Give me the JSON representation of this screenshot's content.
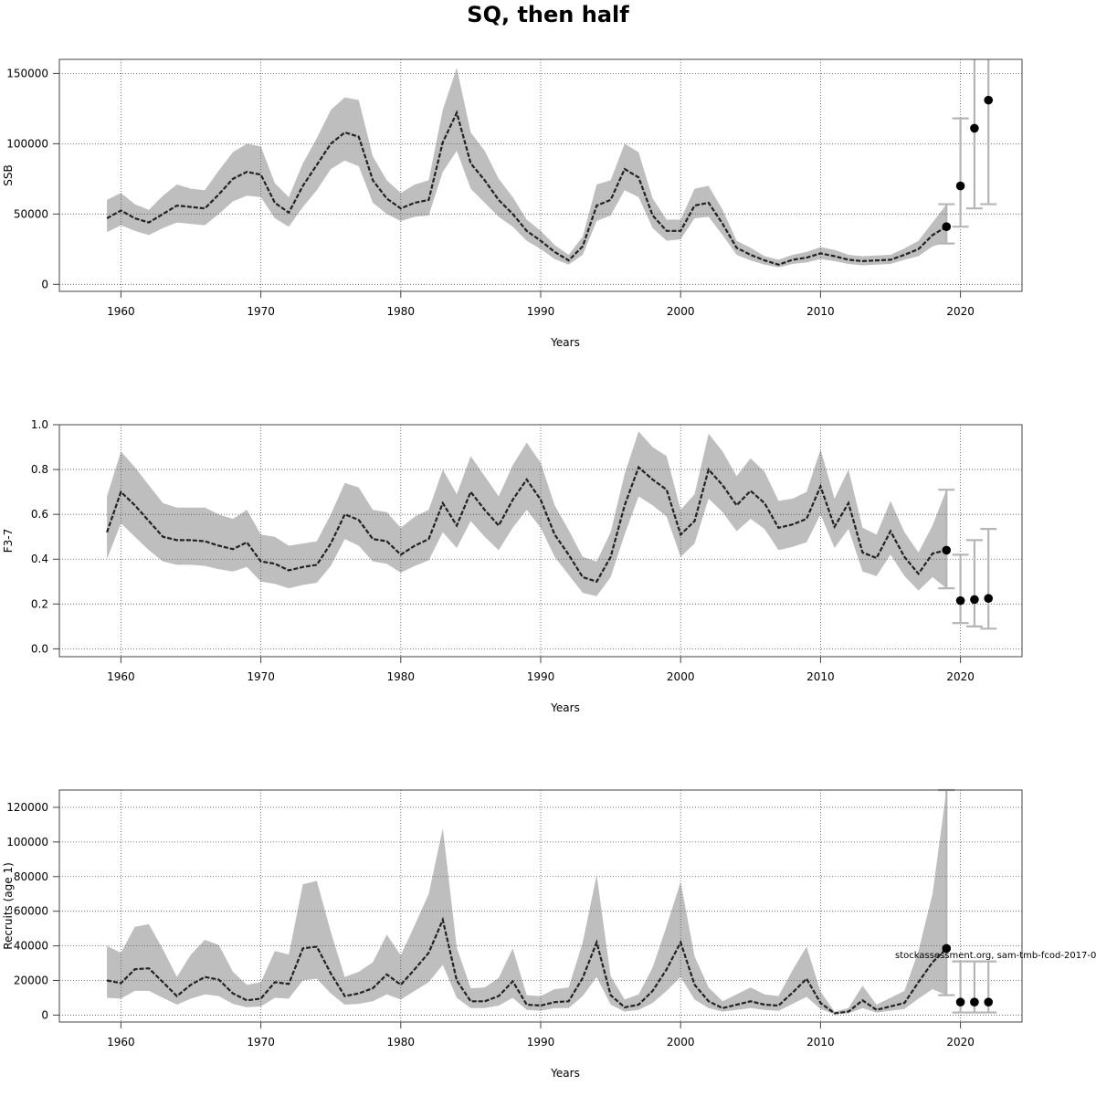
{
  "title": "SQ, then half",
  "credit": "stockassessment.org, sam-tmb-fcod-2017-0",
  "chart_data": [
    {
      "type": "line",
      "ylabel": "SSB",
      "xlabel": "Years",
      "xlim": [
        1955.6,
        2024.4
      ],
      "ylim": [
        -5000,
        160000
      ],
      "xticks": [
        1960,
        1970,
        1980,
        1990,
        2000,
        2010,
        2020
      ],
      "yticks": [
        0,
        50000,
        100000,
        150000
      ],
      "ytick_labels": [
        "0",
        "50000",
        "100000",
        "150000"
      ],
      "grid": true,
      "band_color": "#bebebe",
      "x": [
        1959,
        1960,
        1961,
        1962,
        1963,
        1964,
        1965,
        1966,
        1967,
        1968,
        1969,
        1970,
        1971,
        1972,
        1973,
        1974,
        1975,
        1976,
        1977,
        1978,
        1979,
        1980,
        1981,
        1982,
        1983,
        1984,
        1985,
        1986,
        1987,
        1988,
        1989,
        1990,
        1991,
        1992,
        1993,
        1994,
        1995,
        1996,
        1997,
        1998,
        1999,
        2000,
        2001,
        2002,
        2003,
        2004,
        2005,
        2006,
        2007,
        2008,
        2009,
        2010,
        2011,
        2012,
        2013,
        2014,
        2015,
        2016,
        2017,
        2018,
        2019
      ],
      "y": [
        47000,
        52500,
        47000,
        44000,
        50000,
        56000,
        55000,
        54000,
        64000,
        75000,
        80000,
        78000,
        58000,
        51000,
        70000,
        85000,
        100000,
        108000,
        105000,
        74000,
        61000,
        54000,
        58000,
        60000,
        101000,
        122000,
        86000,
        74000,
        60000,
        50000,
        38000,
        31000,
        23000,
        17000,
        27000,
        56000,
        60000,
        82000,
        76000,
        49000,
        38000,
        38000,
        56000,
        58000,
        43000,
        26000,
        21000,
        17000,
        14000,
        17500,
        19000,
        22000,
        20000,
        17500,
        16500,
        17000,
        17500,
        21000,
        25000,
        35000,
        41000
      ],
      "lower": [
        37000,
        42000,
        38000,
        35000,
        40000,
        44000,
        43000,
        42000,
        50000,
        59000,
        63000,
        62000,
        47000,
        41000,
        55000,
        67000,
        82000,
        88000,
        84000,
        58000,
        50000,
        45000,
        48000,
        49000,
        80000,
        95000,
        68000,
        58000,
        48000,
        41000,
        31000,
        25000,
        18000,
        14000,
        21000,
        45000,
        49000,
        67000,
        62000,
        40000,
        31000,
        32000,
        47000,
        48000,
        35000,
        21000,
        17000,
        14000,
        12000,
        14500,
        15500,
        18000,
        16500,
        14500,
        13500,
        14000,
        14500,
        17500,
        20000,
        27000,
        30000
      ],
      "upper": [
        60000,
        65000,
        57000,
        53000,
        63000,
        71000,
        68000,
        67000,
        81000,
        94000,
        100000,
        98000,
        72000,
        62000,
        86000,
        104000,
        124000,
        133000,
        131000,
        91000,
        74000,
        65000,
        71000,
        74000,
        124000,
        154000,
        108000,
        95000,
        75000,
        62000,
        46000,
        38000,
        28000,
        21000,
        34000,
        71000,
        74000,
        100000,
        94000,
        61000,
        46000,
        46000,
        68000,
        70000,
        53000,
        31000,
        26000,
        20000,
        17500,
        21000,
        23000,
        26500,
        24500,
        21000,
        20000,
        20500,
        21000,
        25500,
        31000,
        44000,
        57000
      ],
      "forecast": {
        "x": [
          2019,
          2020,
          2021,
          2022
        ],
        "y": [
          41000,
          70000,
          111000,
          131000
        ],
        "lower": [
          29000,
          41000,
          54000,
          57000
        ],
        "upper": [
          57000,
          118000,
          165000,
          165000
        ]
      }
    },
    {
      "type": "line",
      "ylabel": "F3-7",
      "xlabel": "Years",
      "xlim": [
        1955.6,
        2024.4
      ],
      "ylim": [
        -0.035,
        1.0
      ],
      "xticks": [
        1960,
        1970,
        1980,
        1990,
        2000,
        2010,
        2020
      ],
      "yticks": [
        0.0,
        0.2,
        0.4,
        0.6,
        0.8,
        1.0
      ],
      "ytick_labels": [
        "0.0",
        "0.2",
        "0.4",
        "0.6",
        "0.8",
        "1.0"
      ],
      "grid": true,
      "band_color": "#bebebe",
      "x": [
        1959,
        1960,
        1961,
        1962,
        1963,
        1964,
        1965,
        1966,
        1967,
        1968,
        1969,
        1970,
        1971,
        1972,
        1973,
        1974,
        1975,
        1976,
        1977,
        1978,
        1979,
        1980,
        1981,
        1982,
        1983,
        1984,
        1985,
        1986,
        1987,
        1988,
        1989,
        1990,
        1991,
        1992,
        1993,
        1994,
        1995,
        1996,
        1997,
        1998,
        1999,
        2000,
        2001,
        2002,
        2003,
        2004,
        2005,
        2006,
        2007,
        2008,
        2009,
        2010,
        2011,
        2012,
        2013,
        2014,
        2015,
        2016,
        2017,
        2018,
        2019
      ],
      "y": [
        0.52,
        0.7,
        0.64,
        0.57,
        0.5,
        0.485,
        0.485,
        0.48,
        0.46,
        0.445,
        0.475,
        0.39,
        0.38,
        0.35,
        0.365,
        0.375,
        0.47,
        0.6,
        0.575,
        0.49,
        0.48,
        0.42,
        0.46,
        0.49,
        0.65,
        0.55,
        0.7,
        0.62,
        0.55,
        0.665,
        0.755,
        0.665,
        0.51,
        0.42,
        0.32,
        0.3,
        0.41,
        0.64,
        0.81,
        0.755,
        0.71,
        0.51,
        0.57,
        0.8,
        0.73,
        0.64,
        0.705,
        0.65,
        0.54,
        0.555,
        0.58,
        0.725,
        0.545,
        0.65,
        0.43,
        0.405,
        0.525,
        0.41,
        0.335,
        0.425,
        0.44
      ],
      "lower": [
        0.4,
        0.56,
        0.5,
        0.44,
        0.39,
        0.375,
        0.375,
        0.37,
        0.355,
        0.345,
        0.365,
        0.3,
        0.29,
        0.27,
        0.285,
        0.295,
        0.37,
        0.49,
        0.46,
        0.39,
        0.38,
        0.34,
        0.37,
        0.395,
        0.52,
        0.45,
        0.57,
        0.5,
        0.44,
        0.54,
        0.62,
        0.54,
        0.41,
        0.33,
        0.25,
        0.235,
        0.32,
        0.51,
        0.68,
        0.64,
        0.59,
        0.41,
        0.47,
        0.67,
        0.61,
        0.525,
        0.58,
        0.535,
        0.44,
        0.455,
        0.475,
        0.6,
        0.45,
        0.535,
        0.345,
        0.325,
        0.42,
        0.325,
        0.26,
        0.32,
        0.27
      ],
      "upper": [
        0.68,
        0.88,
        0.81,
        0.73,
        0.65,
        0.63,
        0.63,
        0.63,
        0.6,
        0.58,
        0.62,
        0.51,
        0.5,
        0.46,
        0.47,
        0.48,
        0.6,
        0.74,
        0.72,
        0.62,
        0.61,
        0.54,
        0.59,
        0.62,
        0.8,
        0.69,
        0.86,
        0.77,
        0.68,
        0.82,
        0.92,
        0.83,
        0.64,
        0.53,
        0.41,
        0.39,
        0.52,
        0.78,
        0.97,
        0.9,
        0.86,
        0.62,
        0.69,
        0.96,
        0.88,
        0.77,
        0.85,
        0.79,
        0.66,
        0.67,
        0.7,
        0.89,
        0.67,
        0.8,
        0.54,
        0.51,
        0.66,
        0.52,
        0.43,
        0.55,
        0.71
      ],
      "forecast": {
        "x": [
          2019,
          2020,
          2021,
          2022
        ],
        "y": [
          0.44,
          0.215,
          0.22,
          0.225
        ],
        "lower": [
          0.27,
          0.115,
          0.1,
          0.09
        ],
        "upper": [
          0.71,
          0.42,
          0.485,
          0.535
        ]
      }
    },
    {
      "type": "line",
      "ylabel": "Recruits (age 1)",
      "xlabel": "Years",
      "xlim": [
        1955.6,
        2024.4
      ],
      "ylim": [
        -4000,
        130000
      ],
      "xticks": [
        1960,
        1970,
        1980,
        1990,
        2000,
        2010,
        2020
      ],
      "yticks": [
        0,
        20000,
        40000,
        60000,
        80000,
        100000,
        120000
      ],
      "ytick_labels": [
        "0",
        "20000",
        "40000",
        "60000",
        "80000",
        "100000",
        "120000"
      ],
      "grid": true,
      "band_color": "#bebebe",
      "x": [
        1959,
        1960,
        1961,
        1962,
        1963,
        1964,
        1965,
        1966,
        1967,
        1968,
        1969,
        1970,
        1971,
        1972,
        1973,
        1974,
        1975,
        1976,
        1977,
        1978,
        1979,
        1980,
        1981,
        1982,
        1983,
        1984,
        1985,
        1986,
        1987,
        1988,
        1989,
        1990,
        1991,
        1992,
        1993,
        1994,
        1995,
        1996,
        1997,
        1998,
        1999,
        2000,
        2001,
        2002,
        2003,
        2004,
        2005,
        2006,
        2007,
        2008,
        2009,
        2010,
        2011,
        2012,
        2013,
        2014,
        2015,
        2016,
        2017,
        2018,
        2019
      ],
      "y": [
        20000,
        18500,
        26500,
        27000,
        19000,
        11000,
        17500,
        22000,
        20500,
        12500,
        8500,
        9500,
        19000,
        18000,
        38500,
        39500,
        24000,
        11000,
        12500,
        15500,
        23500,
        17500,
        26500,
        36000,
        55000,
        20000,
        8000,
        8000,
        11000,
        19500,
        6000,
        5500,
        7500,
        8000,
        21500,
        42000,
        11500,
        4500,
        6000,
        14000,
        26500,
        42000,
        17500,
        8000,
        4000,
        6000,
        8000,
        6000,
        5500,
        13000,
        21000,
        7000,
        1000,
        2000,
        8500,
        3000,
        5000,
        7000,
        19000,
        30500,
        38500
      ],
      "lower": [
        10000,
        9500,
        14000,
        14000,
        10000,
        6000,
        9500,
        12000,
        11000,
        6500,
        4500,
        5000,
        10000,
        9500,
        20000,
        21000,
        12500,
        6000,
        6500,
        8000,
        12000,
        9000,
        14000,
        19000,
        29000,
        10000,
        4000,
        4000,
        5500,
        10000,
        3000,
        2500,
        4000,
        4000,
        11000,
        22000,
        6000,
        2000,
        3000,
        7000,
        14000,
        22000,
        9000,
        4000,
        2000,
        3000,
        4000,
        3000,
        2500,
        6500,
        10500,
        3500,
        500,
        1000,
        4000,
        1500,
        2500,
        3500,
        9500,
        15000,
        11500
      ],
      "upper": [
        40000,
        36000,
        51000,
        52500,
        38000,
        22000,
        35000,
        43500,
        40500,
        25000,
        17500,
        19000,
        37000,
        35000,
        75500,
        77500,
        48000,
        22000,
        25000,
        30500,
        46500,
        34500,
        52000,
        70000,
        108000,
        39000,
        15500,
        16000,
        21500,
        38500,
        11500,
        11000,
        15000,
        16000,
        42000,
        81000,
        22500,
        9000,
        12000,
        27500,
        51500,
        77000,
        34000,
        16000,
        8000,
        12000,
        16000,
        12000,
        11000,
        26000,
        39500,
        13500,
        2000,
        4000,
        17000,
        6000,
        10000,
        14000,
        37000,
        70000,
        130000
      ],
      "forecast": {
        "x": [
          2019,
          2020,
          2021,
          2022
        ],
        "y": [
          38500,
          7500,
          7500,
          7500
        ],
        "lower": [
          11500,
          1500,
          1500,
          1500
        ],
        "upper": [
          130000,
          31000,
          31000,
          31000
        ]
      }
    }
  ]
}
